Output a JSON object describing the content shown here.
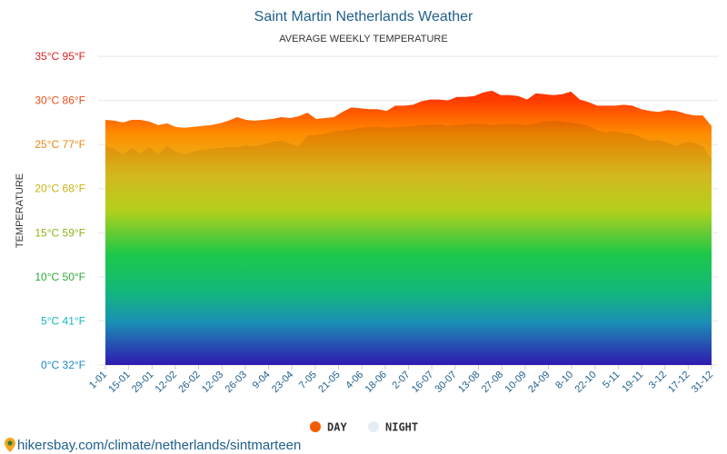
{
  "chart_data": {
    "type": "area",
    "title": "Saint Martin Netherlands Weather",
    "subtitle": "AVERAGE WEEKLY TEMPERATURE",
    "ylabel": "TEMPERATURE",
    "xlabel": "",
    "ylim": [
      0,
      35
    ],
    "y_ticks": [
      {
        "value": 0,
        "label": "0°C 32°F",
        "color": "#1e88c8"
      },
      {
        "value": 5,
        "label": "5°C 41°F",
        "color": "#15b8c0"
      },
      {
        "value": 10,
        "label": "10°C 50°F",
        "color": "#2eaa3a"
      },
      {
        "value": 15,
        "label": "15°C 59°F",
        "color": "#8cb41a"
      },
      {
        "value": 20,
        "label": "20°C 68°F",
        "color": "#c8b414"
      },
      {
        "value": 25,
        "label": "25°C 77°F",
        "color": "#e88a10"
      },
      {
        "value": 30,
        "label": "30°C 86°F",
        "color": "#e8501a"
      },
      {
        "value": 35,
        "label": "35°C 95°F",
        "color": "#e02020"
      }
    ],
    "x_tick_labels": [
      "1-01",
      "15-01",
      "29-01",
      "12-02",
      "26-02",
      "12-03",
      "26-03",
      "9-04",
      "23-04",
      "7-05",
      "21-05",
      "4-06",
      "18-06",
      "2-07",
      "16-07",
      "30-07",
      "13-08",
      "27-08",
      "10-09",
      "24-09",
      "8-10",
      "22-10",
      "5-11",
      "19-11",
      "3-12",
      "17-12",
      "31-12"
    ],
    "series": [
      {
        "name": "DAY",
        "color": "#f45b00",
        "values": [
          27.8,
          27.7,
          27.5,
          27.8,
          27.8,
          27.6,
          27.2,
          27.4,
          27.0,
          26.9,
          27.0,
          27.1,
          27.2,
          27.4,
          27.7,
          28.1,
          27.8,
          27.7,
          27.8,
          27.9,
          28.1,
          28.0,
          28.2,
          28.6,
          27.9,
          28.0,
          28.1,
          28.7,
          29.2,
          29.1,
          29.0,
          29.0,
          28.8,
          29.4,
          29.4,
          29.5,
          29.9,
          30.1,
          30.1,
          30.0,
          30.4,
          30.4,
          30.5,
          30.9,
          31.1,
          30.6,
          30.6,
          30.5,
          30.1,
          30.8,
          30.7,
          30.6,
          30.7,
          31.0,
          30.1,
          29.8,
          29.4,
          29.4,
          29.4,
          29.5,
          29.4,
          29.0,
          28.8,
          28.7,
          28.9,
          28.8,
          28.5,
          28.3,
          28.3,
          27.1
        ]
      },
      {
        "name": "NIGHT",
        "color": "#e4ecf4",
        "values": [
          24.8,
          24.5,
          23.9,
          24.6,
          24.0,
          24.7,
          23.9,
          24.8,
          24.2,
          23.9,
          24.2,
          24.4,
          24.5,
          24.6,
          24.7,
          24.7,
          24.9,
          24.8,
          25.0,
          25.3,
          25.4,
          25.1,
          24.8,
          26.0,
          26.1,
          26.2,
          26.5,
          26.6,
          26.7,
          26.9,
          27.0,
          27.0,
          26.9,
          27.0,
          27.0,
          27.1,
          27.2,
          27.2,
          27.3,
          27.1,
          27.2,
          27.3,
          27.4,
          27.3,
          27.2,
          27.3,
          27.3,
          27.3,
          27.2,
          27.4,
          27.6,
          27.7,
          27.6,
          27.5,
          27.3,
          27.1,
          26.6,
          26.4,
          26.5,
          26.3,
          26.2,
          25.8,
          25.4,
          25.5,
          25.2,
          24.8,
          25.3,
          25.2,
          24.8,
          23.3
        ]
      }
    ],
    "legend_position": "bottom-center"
  },
  "source_text": "hikersbay.com/climate/netherlands/sintmarteen",
  "colors": {
    "title": "#1f5f8b",
    "grid": "#e6e6e6",
    "gradient_top": "#ff1a00",
    "gradient_bottom": "#3019b0"
  }
}
